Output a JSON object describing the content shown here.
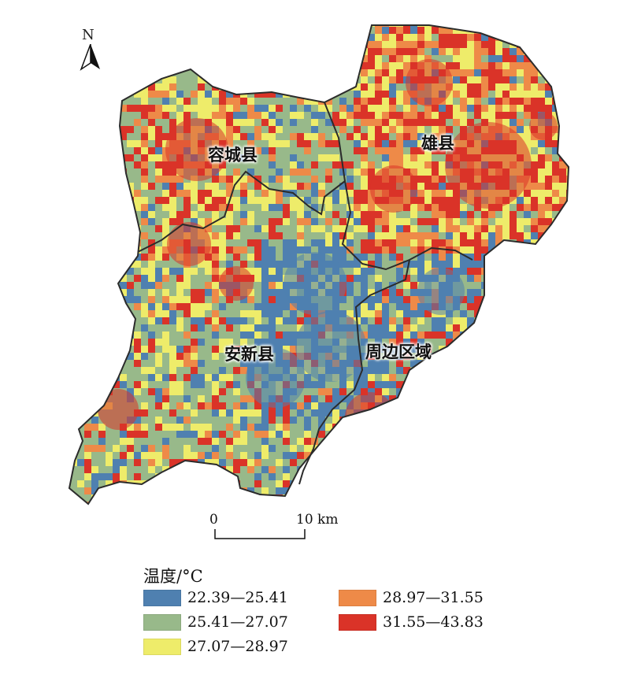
{
  "north": {
    "label": "N",
    "icon": "north-arrow-icon"
  },
  "regions": [
    {
      "name": "容城县"
    },
    {
      "name": "雄县"
    },
    {
      "name": "安新县"
    },
    {
      "name": "周边区域"
    }
  ],
  "scale_bar": {
    "start": "0",
    "end": "10 km"
  },
  "legend": {
    "title": "温度/°C",
    "classes": [
      {
        "label": "22.39—25.41",
        "color": "#4f80b0"
      },
      {
        "label": "25.41—27.07",
        "color": "#98b98a"
      },
      {
        "label": "27.07—28.97",
        "color": "#eeec6a"
      },
      {
        "label": "28.97—31.55",
        "color": "#ee8a48"
      },
      {
        "label": "31.55—43.83",
        "color": "#da3328"
      }
    ]
  }
}
